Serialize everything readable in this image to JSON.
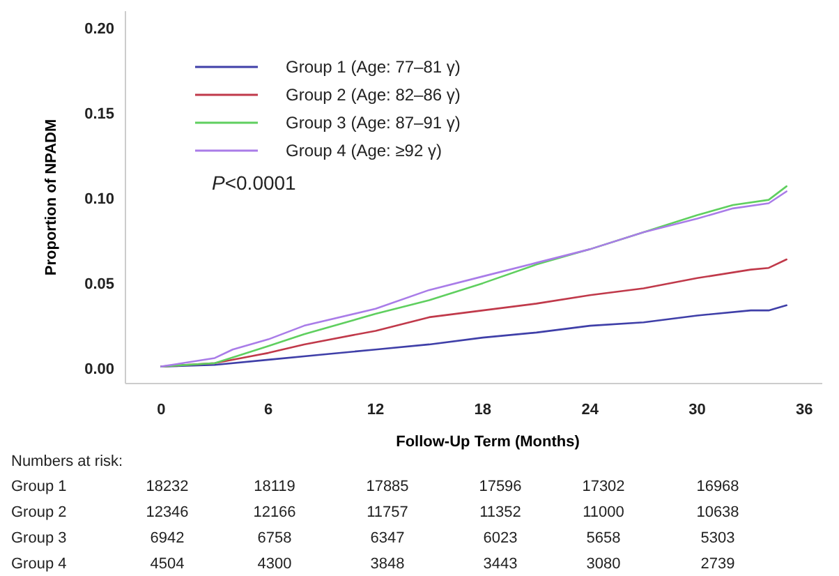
{
  "chart_data": {
    "type": "line",
    "xlabel": "Follow-Up Term (Months)",
    "ylabel": "Proportion of NPADM",
    "xlim": [
      -2,
      37
    ],
    "ylim": [
      -0.009,
      0.21
    ],
    "xticks": [
      0,
      6,
      12,
      18,
      24,
      30,
      36
    ],
    "yticks": [
      {
        "value": 0,
        "label": "0.00"
      },
      {
        "value": 0.05,
        "label": "0.05"
      },
      {
        "value": 0.1,
        "label": "0.10"
      },
      {
        "value": 0.15,
        "label": "0.15"
      },
      {
        "value": 0.2,
        "label": "0.20"
      }
    ],
    "grid": false,
    "legend": "top left",
    "line_style": "solid",
    "series": [
      {
        "name": "Group 1 (Age: 77–81 γ)",
        "color": "#3f3fa8",
        "x": [
          0,
          3,
          6,
          9,
          12,
          15,
          18,
          21,
          24,
          27,
          30,
          33,
          34,
          35
        ],
        "values": [
          0.001,
          0.002,
          0.005,
          0.008,
          0.011,
          0.014,
          0.018,
          0.021,
          0.025,
          0.027,
          0.031,
          0.034,
          0.034,
          0.037
        ]
      },
      {
        "name": "Group 2 (Age: 82–86 γ)",
        "color": "#c0394a",
        "x": [
          0,
          3,
          6,
          8,
          12,
          15,
          18,
          21,
          24,
          27,
          30,
          33,
          34,
          35
        ],
        "values": [
          0.001,
          0.003,
          0.009,
          0.014,
          0.022,
          0.03,
          0.034,
          0.038,
          0.043,
          0.047,
          0.053,
          0.058,
          0.059,
          0.064
        ]
      },
      {
        "name": "Group 3 (Age: 87–91 γ)",
        "color": "#5fcf5f",
        "x": [
          0,
          3,
          6,
          8,
          12,
          15,
          18,
          21,
          24,
          27,
          30,
          32,
          34,
          35
        ],
        "values": [
          0.001,
          0.003,
          0.013,
          0.02,
          0.032,
          0.04,
          0.05,
          0.061,
          0.07,
          0.08,
          0.09,
          0.096,
          0.099,
          0.107
        ]
      },
      {
        "name": "Group 4 (Age: ≥92 γ)",
        "color": "#a97ce8",
        "x": [
          0,
          3,
          4,
          6,
          8,
          12,
          15,
          18,
          21,
          24,
          27,
          30,
          32,
          34,
          35
        ],
        "values": [
          0.001,
          0.006,
          0.011,
          0.017,
          0.025,
          0.035,
          0.046,
          0.054,
          0.062,
          0.07,
          0.08,
          0.088,
          0.094,
          0.097,
          0.104
        ]
      }
    ],
    "annotations": [
      "P<0.0001",
      "Numbers at risk:",
      "Group 1",
      "18232",
      "18119",
      "17885",
      "17596",
      "17302",
      "16968",
      "Group 2",
      "12346",
      "12166",
      "11757",
      "11352",
      "11000",
      "10638",
      "Group 3",
      "6942",
      "6758",
      "6347",
      "6023",
      "5658",
      "5303",
      "Group 4",
      "4504",
      "4300",
      "3848",
      "3443",
      "3080",
      "2739"
    ]
  }
}
